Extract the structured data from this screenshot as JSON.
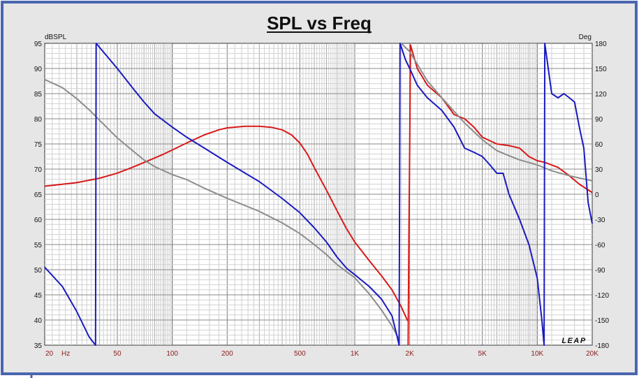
{
  "chart_data": {
    "type": "line",
    "title": "SPL vs Freq",
    "left_axis_label": "dBSPL",
    "right_axis_label": "Deg",
    "x_scale": "log",
    "xlim": [
      20,
      20000
    ],
    "ylim_left": [
      35,
      95
    ],
    "ylim_right": [
      -180,
      180
    ],
    "x_ticks": [
      {
        "value": 20,
        "label": "20"
      },
      {
        "value": 50,
        "label": "50"
      },
      {
        "value": 100,
        "label": "100"
      },
      {
        "value": 200,
        "label": "200"
      },
      {
        "value": 500,
        "label": "500"
      },
      {
        "value": 1000,
        "label": "1K"
      },
      {
        "value": 2000,
        "label": "2K"
      },
      {
        "value": 5000,
        "label": "5K"
      },
      {
        "value": 10000,
        "label": "10K"
      },
      {
        "value": 20000,
        "label": "20K"
      }
    ],
    "x_unit": "Hz",
    "y_left_ticks": [
      35,
      40,
      45,
      50,
      55,
      60,
      65,
      70,
      75,
      80,
      85,
      90,
      95
    ],
    "y_right_ticks": [
      -180,
      -150,
      -120,
      -90,
      -60,
      -30,
      0,
      30,
      60,
      90,
      120,
      150,
      180
    ],
    "grid": true,
    "logo": "LEAP",
    "series": [
      {
        "axis": "left",
        "color": "#d81818",
        "points": [
          [
            20,
            66.6
          ],
          [
            30,
            67.3
          ],
          [
            40,
            68.2
          ],
          [
            50,
            69.2
          ],
          [
            60,
            70.3
          ],
          [
            70,
            71.3
          ],
          [
            80,
            72.2
          ],
          [
            90,
            73.0
          ],
          [
            100,
            73.8
          ],
          [
            120,
            75.2
          ],
          [
            150,
            76.8
          ],
          [
            180,
            77.8
          ],
          [
            200,
            78.2
          ],
          [
            250,
            78.5
          ],
          [
            300,
            78.5
          ],
          [
            350,
            78.3
          ],
          [
            400,
            77.8
          ],
          [
            450,
            76.8
          ],
          [
            500,
            75.2
          ],
          [
            550,
            73.0
          ],
          [
            600,
            70.3
          ],
          [
            700,
            65.8
          ],
          [
            800,
            61.7
          ],
          [
            900,
            58.2
          ],
          [
            1000,
            55.5
          ],
          [
            1200,
            51.8
          ],
          [
            1400,
            48.8
          ],
          [
            1600,
            46.0
          ],
          [
            1800,
            42.6
          ],
          [
            1950,
            39.8
          ]
        ]
      },
      {
        "axis": "right",
        "color": "#d81818",
        "points": [
          [
            1960,
            -180
          ],
          [
            1980,
            -50
          ],
          [
            2000,
            60
          ],
          [
            2020,
            178
          ],
          [
            2200,
            150
          ],
          [
            2500,
            130
          ],
          [
            3000,
            115
          ],
          [
            3500,
            95
          ],
          [
            4000,
            90
          ],
          [
            4500,
            80
          ],
          [
            5000,
            68
          ],
          [
            6000,
            60
          ],
          [
            7000,
            58
          ],
          [
            8000,
            55
          ],
          [
            9000,
            45
          ],
          [
            10000,
            40
          ],
          [
            11000,
            38
          ],
          [
            13000,
            32
          ],
          [
            15000,
            22
          ],
          [
            17000,
            12
          ],
          [
            20000,
            2
          ]
        ]
      },
      {
        "axis": "left",
        "color": "#8c8c8c",
        "points": [
          [
            20,
            87.8
          ],
          [
            25,
            86.2
          ],
          [
            30,
            84.0
          ],
          [
            35,
            81.8
          ],
          [
            40,
            79.7
          ],
          [
            50,
            76.2
          ],
          [
            60,
            73.8
          ],
          [
            70,
            71.8
          ],
          [
            80,
            70.5
          ],
          [
            100,
            68.9
          ],
          [
            120,
            67.9
          ],
          [
            150,
            66.2
          ],
          [
            200,
            64.2
          ],
          [
            300,
            61.6
          ],
          [
            400,
            59.3
          ],
          [
            500,
            57.2
          ],
          [
            600,
            55.0
          ],
          [
            700,
            53.0
          ],
          [
            800,
            51.0
          ],
          [
            1000,
            48.4
          ],
          [
            1200,
            45.2
          ],
          [
            1400,
            42.0
          ],
          [
            1600,
            38.8
          ],
          [
            1700,
            37.0
          ],
          [
            1750,
            36.0
          ]
        ]
      },
      {
        "axis": "right",
        "color": "#8c8c8c",
        "points": [
          [
            1800,
            180
          ],
          [
            2000,
            170
          ],
          [
            2500,
            135
          ],
          [
            3000,
            115
          ],
          [
            4000,
            85
          ],
          [
            5000,
            65
          ],
          [
            6000,
            52
          ],
          [
            7000,
            46
          ],
          [
            8000,
            41
          ],
          [
            10000,
            35
          ],
          [
            12000,
            28
          ],
          [
            15000,
            22
          ],
          [
            20000,
            16
          ]
        ]
      },
      {
        "axis": "right",
        "color": "#1a1ac0",
        "points": [
          [
            20,
            -87
          ],
          [
            25,
            -110
          ],
          [
            30,
            -140
          ],
          [
            35,
            -170
          ],
          [
            38,
            -180
          ],
          [
            38.3,
            180
          ],
          [
            40,
            175
          ],
          [
            50,
            150
          ],
          [
            60,
            128
          ],
          [
            70,
            110
          ],
          [
            80,
            96
          ],
          [
            100,
            80
          ],
          [
            120,
            68
          ],
          [
            150,
            55
          ],
          [
            200,
            38
          ],
          [
            300,
            15
          ],
          [
            400,
            -5
          ],
          [
            500,
            -22
          ],
          [
            600,
            -40
          ],
          [
            700,
            -57
          ],
          [
            800,
            -75
          ],
          [
            900,
            -88
          ],
          [
            1000,
            -96
          ],
          [
            1200,
            -110
          ],
          [
            1400,
            -125
          ],
          [
            1600,
            -145
          ],
          [
            1700,
            -168
          ],
          [
            1750,
            -180
          ],
          [
            1760,
            0
          ],
          [
            1770,
            180
          ],
          [
            1900,
            160
          ],
          [
            2000,
            150
          ],
          [
            2200,
            130
          ],
          [
            2500,
            115
          ],
          [
            3000,
            100
          ],
          [
            3500,
            80
          ],
          [
            4000,
            55
          ],
          [
            4500,
            50
          ],
          [
            5000,
            45
          ],
          [
            5500,
            35
          ],
          [
            6000,
            25
          ],
          [
            6500,
            25
          ],
          [
            7000,
            0
          ],
          [
            8000,
            -30
          ],
          [
            9000,
            -60
          ],
          [
            10000,
            -100
          ],
          [
            10600,
            -150
          ],
          [
            10900,
            -180
          ],
          [
            10950,
            0
          ],
          [
            11000,
            180
          ],
          [
            12000,
            120
          ],
          [
            13000,
            115
          ],
          [
            14000,
            120
          ],
          [
            15000,
            115
          ],
          [
            16000,
            110
          ],
          [
            17000,
            80
          ],
          [
            18000,
            55
          ],
          [
            19000,
            -10
          ],
          [
            20000,
            -35
          ]
        ]
      }
    ]
  }
}
